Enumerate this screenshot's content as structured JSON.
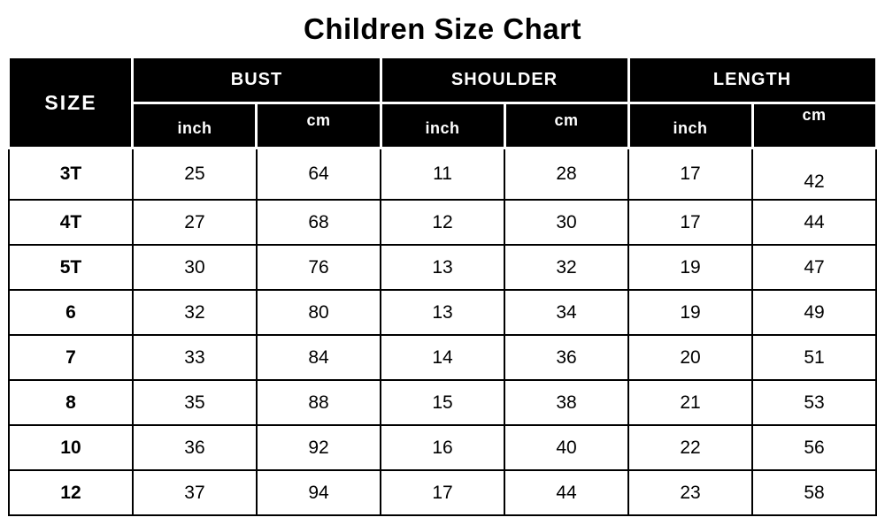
{
  "title": "Children Size Chart",
  "table": {
    "size_header": "SIZE",
    "groups": [
      {
        "label": "BUST",
        "units": [
          "inch",
          "cm"
        ]
      },
      {
        "label": "SHOULDER",
        "units": [
          "inch",
          "cm"
        ]
      },
      {
        "label": "LENGTH",
        "units": [
          "inch",
          "cm"
        ]
      }
    ],
    "rows": [
      {
        "size": "3T",
        "cells": [
          "25",
          "64",
          "11",
          "28",
          "17",
          "42"
        ]
      },
      {
        "size": "4T",
        "cells": [
          "27",
          "68",
          "12",
          "30",
          "17",
          "44"
        ]
      },
      {
        "size": "5T",
        "cells": [
          "30",
          "76",
          "13",
          "32",
          "19",
          "47"
        ]
      },
      {
        "size": "6",
        "cells": [
          "32",
          "80",
          "13",
          "34",
          "19",
          "49"
        ]
      },
      {
        "size": "7",
        "cells": [
          "33",
          "84",
          "14",
          "36",
          "20",
          "51"
        ]
      },
      {
        "size": "8",
        "cells": [
          "35",
          "88",
          "15",
          "38",
          "21",
          "53"
        ]
      },
      {
        "size": "10",
        "cells": [
          "36",
          "92",
          "16",
          "40",
          "22",
          "56"
        ]
      },
      {
        "size": "12",
        "cells": [
          "37",
          "94",
          "17",
          "44",
          "23",
          "58"
        ]
      }
    ]
  },
  "colors": {
    "header_background": "#000000",
    "header_text": "#ffffff",
    "body_text": "#000000",
    "grid_border": "#000000",
    "page_background": "#ffffff"
  },
  "chart_data": {
    "type": "table",
    "title": "Children Size Chart",
    "columns": [
      "SIZE",
      "BUST inch",
      "BUST cm",
      "SHOULDER inch",
      "SHOULDER cm",
      "LENGTH inch",
      "LENGTH cm"
    ],
    "rows": [
      [
        "3T",
        25,
        64,
        11,
        28,
        17,
        42
      ],
      [
        "4T",
        27,
        68,
        12,
        30,
        17,
        44
      ],
      [
        "5T",
        30,
        76,
        13,
        32,
        19,
        47
      ],
      [
        "6",
        32,
        80,
        13,
        34,
        19,
        49
      ],
      [
        "7",
        33,
        84,
        14,
        36,
        20,
        51
      ],
      [
        "8",
        35,
        88,
        15,
        38,
        21,
        53
      ],
      [
        "10",
        36,
        92,
        16,
        40,
        22,
        56
      ],
      [
        "12",
        37,
        94,
        17,
        44,
        23,
        58
      ]
    ]
  }
}
